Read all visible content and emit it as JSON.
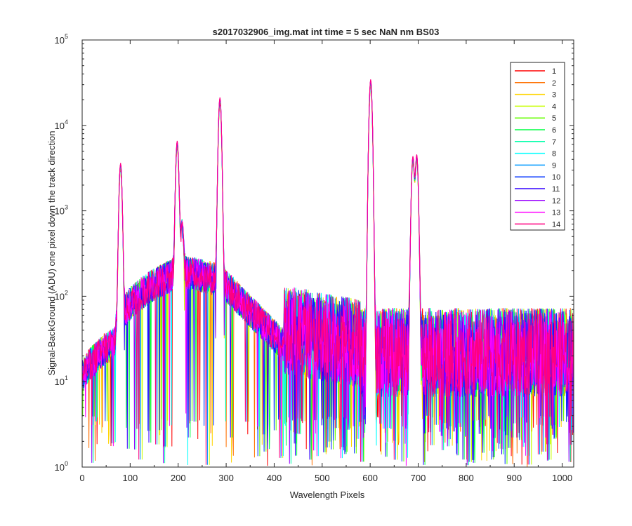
{
  "chart_data": {
    "type": "line",
    "title": "s2017032906_img.mat int time = 5 sec  NaN nm BS03",
    "xlabel": "Wavelength Pixels",
    "ylabel": "Signal-BackGround (ADU) one pixel down the track direction",
    "xlim": [
      0,
      1024
    ],
    "ylim": [
      1,
      100000
    ],
    "yscale": "log",
    "xticks": [
      0,
      100,
      200,
      300,
      400,
      500,
      600,
      700,
      800,
      900,
      1000
    ],
    "yticks": [
      {
        "base": "10",
        "exp": "0",
        "value": 1
      },
      {
        "base": "10",
        "exp": "1",
        "value": 10
      },
      {
        "base": "10",
        "exp": "2",
        "value": 100
      },
      {
        "base": "10",
        "exp": "3",
        "value": 1000
      },
      {
        "base": "10",
        "exp": "4",
        "value": 10000
      },
      {
        "base": "10",
        "exp": "5",
        "value": 100000
      }
    ],
    "grid": false,
    "legend_position": "top-right",
    "peaks": [
      {
        "x": 80,
        "y": 3300
      },
      {
        "x": 198,
        "y": 5900
      },
      {
        "x": 208,
        "y": 500
      },
      {
        "x": 287,
        "y": 19500
      },
      {
        "x": 601,
        "y": 32000
      },
      {
        "x": 689,
        "y": 4000
      },
      {
        "x": 697,
        "y": 4200
      }
    ],
    "series": [
      {
        "name": "1",
        "color": "#ff0000"
      },
      {
        "name": "2",
        "color": "#ff7000"
      },
      {
        "name": "3",
        "color": "#ffd400"
      },
      {
        "name": "4",
        "color": "#c8ff00"
      },
      {
        "name": "5",
        "color": "#66ff00"
      },
      {
        "name": "6",
        "color": "#00ff44"
      },
      {
        "name": "7",
        "color": "#00ffaa"
      },
      {
        "name": "8",
        "color": "#00ffff"
      },
      {
        "name": "9",
        "color": "#0099ff"
      },
      {
        "name": "10",
        "color": "#0033ff"
      },
      {
        "name": "11",
        "color": "#3300ff"
      },
      {
        "name": "12",
        "color": "#9900ff"
      },
      {
        "name": "13",
        "color": "#ff00ff"
      },
      {
        "name": "14",
        "color": "#ff0080"
      }
    ]
  }
}
